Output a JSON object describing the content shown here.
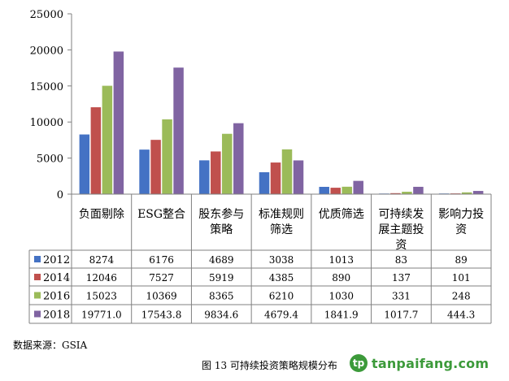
{
  "chart_data": {
    "type": "bar",
    "categories": [
      "负面剔除",
      "ESG整合",
      "股东参与\n策略",
      "标准规则\n筛选",
      "优质筛选",
      "可持续发\n展主题投\n资",
      "影响力投\n资"
    ],
    "series": [
      {
        "name": "2012",
        "color": "#4472c4",
        "values": [
          8274,
          6176,
          4689,
          3038,
          1013,
          83,
          89
        ],
        "labels": [
          "8274",
          "6176",
          "4689",
          "3038",
          "1013",
          "83",
          "89"
        ]
      },
      {
        "name": "2014",
        "color": "#c0504d",
        "values": [
          12046,
          7527,
          5919,
          4385,
          890,
          137,
          101
        ],
        "labels": [
          "12046",
          "7527",
          "5919",
          "4385",
          "890",
          "137",
          "101"
        ]
      },
      {
        "name": "2016",
        "color": "#9bbb59",
        "values": [
          15023,
          10369,
          8365,
          6210,
          1030,
          331,
          248
        ],
        "labels": [
          "15023",
          "10369",
          "8365",
          "6210",
          "1030",
          "331",
          "248"
        ]
      },
      {
        "name": "2018",
        "color": "#8064a2",
        "values": [
          19771.0,
          17543.8,
          9834.6,
          4679.4,
          1841.9,
          1017.7,
          444.3
        ],
        "labels": [
          "19771.0",
          "17543.8",
          "9834.6",
          "4679.4",
          "1841.9",
          "1017.7",
          "444.3"
        ]
      }
    ],
    "ylim": [
      0,
      25000
    ],
    "yticks": [
      0,
      5000,
      10000,
      15000,
      20000,
      25000
    ],
    "grid": false,
    "legend": "data-table"
  },
  "source_note": "数据来源：GSIA",
  "caption": "图 13 可持续投资策略规模分布",
  "logo": {
    "mark": "tp",
    "text": "tanpaifang.com",
    "color": "#3c9a3a"
  }
}
